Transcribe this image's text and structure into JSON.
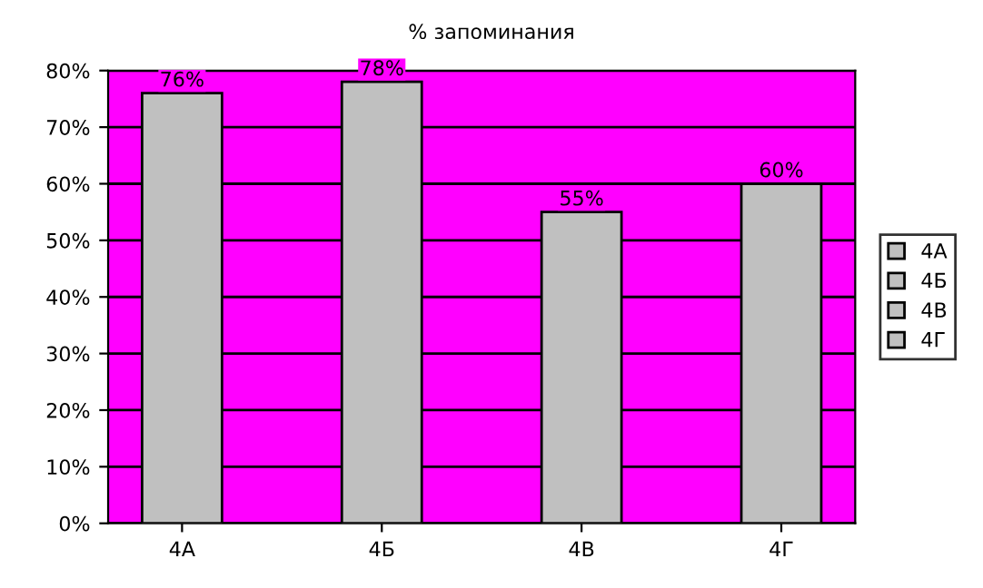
{
  "chart_data": {
    "type": "bar",
    "title": "% запоминания",
    "categories": [
      "4А",
      "4Б",
      "4В",
      "4Г"
    ],
    "stacked": true,
    "series": [
      {
        "name": "4А",
        "color": "#c0c0c0",
        "values": [
          76,
          null,
          null,
          null
        ],
        "value_labels": [
          "76%",
          null,
          null,
          null
        ]
      },
      {
        "name": "4Б",
        "color": "#c0c0c0",
        "values": [
          null,
          78,
          null,
          null
        ],
        "value_labels": [
          null,
          "78%",
          null,
          null
        ]
      },
      {
        "name": "4В",
        "color": "#c0c0c0",
        "values": [
          null,
          null,
          55,
          null
        ],
        "value_labels": [
          null,
          null,
          "55%",
          null
        ]
      },
      {
        "name": "4Г",
        "color": "#c0c0c0",
        "values": [
          null,
          null,
          null,
          60
        ],
        "value_labels": [
          null,
          null,
          null,
          "60%"
        ]
      }
    ],
    "ylim": [
      0,
      80
    ],
    "yticks": [
      {
        "value": 0,
        "label": "0%"
      },
      {
        "value": 10,
        "label": "10%"
      },
      {
        "value": 20,
        "label": "20%"
      },
      {
        "value": 30,
        "label": "30%"
      },
      {
        "value": 40,
        "label": "40%"
      },
      {
        "value": 50,
        "label": "50%"
      },
      {
        "value": 60,
        "label": "60%"
      },
      {
        "value": 70,
        "label": "70%"
      },
      {
        "value": 80,
        "label": "80%"
      }
    ],
    "grid": "y",
    "legend": "right"
  }
}
